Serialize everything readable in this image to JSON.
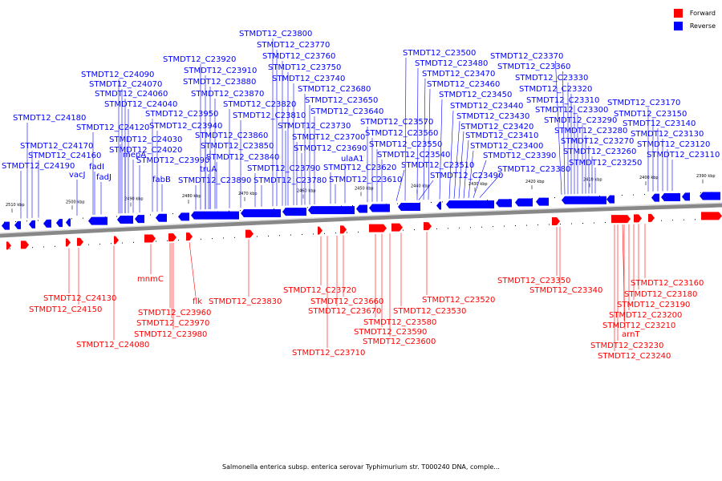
{
  "legend": {
    "forward_label": "Forward",
    "reverse_label": "Reverse",
    "forward_color": "#ff0000",
    "reverse_color": "#0000ff"
  },
  "caption": "Salmonella enterica subsp. enterica serovar Typhimurium str. T000240 DNA, comple...",
  "ticks": [
    "2510 kbp",
    "2500 kbp",
    "2490 kbp",
    "2480 kbp",
    "2470 kbp",
    "2460 kbp",
    "2450 kbp",
    "2440 kbp",
    "2430 kbp",
    "2420 kbp",
    "2410 kbp",
    "2400 kbp",
    "2390 kbp"
  ],
  "reverse_labels": [
    "STMDT12_C23800",
    "STMDT12_C23770",
    "STMDT12_C23760",
    "STMDT12_C23750",
    "STMDT12_C23740",
    "STMDT12_C23680",
    "STMDT12_C23650",
    "STMDT12_C23640",
    "STMDT12_C23500",
    "STMDT12_C23480",
    "STMDT12_C23470",
    "STMDT12_C23460",
    "STMDT12_C23450",
    "STMDT12_C23440",
    "STMDT12_C23430",
    "STMDT12_C23420",
    "STMDT12_C23410",
    "STMDT12_C23400",
    "STMDT12_C23390",
    "STMDT12_C23380",
    "STMDT12_C23370",
    "STMDT12_C23360",
    "STMDT12_C23330",
    "STMDT12_C23320",
    "STMDT12_C23310",
    "STMDT12_C23300",
    "STMDT12_C23290",
    "STMDT12_C23280",
    "STMDT12_C23270",
    "STMDT12_C23260",
    "STMDT12_C23250",
    "STMDT12_C23920",
    "STMDT12_C23910",
    "STMDT12_C23880",
    "STMDT12_C23870",
    "STMDT12_C23820",
    "STMDT12_C23810",
    "STMDT12_C23730",
    "STMDT12_C23700",
    "STMDT12_C23690",
    "STMDT12_C23620",
    "STMDT12_C23610",
    "ulaA1",
    "STMDT12_C23570",
    "STMDT12_C23560",
    "STMDT12_C23550",
    "STMDT12_C23540",
    "STMDT12_C23510",
    "STMDT12_C23490",
    "STMDT12_C24090",
    "STMDT12_C24070",
    "STMDT12_C24060",
    "STMDT12_C24040",
    "STMDT12_C23950",
    "STMDT12_C23940",
    "STMDT12_C23860",
    "STMDT12_C23850",
    "STMDT12_C23840",
    "STMDT12_C23790",
    "STMDT12_C23780",
    "STMDT12_C24180",
    "STMDT12_C24120",
    "STMDT12_C24030",
    "STMDT12_C24020",
    "STMDT12_C23990",
    "truA",
    "STMDT12_C23890",
    "fabB",
    "mepA",
    "STMDT12_C24170",
    "STMDT12_C24160",
    "STMDT12_C24190",
    "fadI",
    "fadJ",
    "vacJ",
    "STMDT12_C23170",
    "STMDT12_C23150",
    "STMDT12_C23140",
    "STMDT12_C23130",
    "STMDT12_C23120",
    "STMDT12_C23110"
  ],
  "forward_labels": [
    "STMDT12_C24130",
    "STMDT12_C24150",
    "STMDT12_C24080",
    "mnmC",
    "STMDT12_C23960",
    "STMDT12_C23970",
    "STMDT12_C23980",
    "flk",
    "STMDT12_C23830",
    "STMDT12_C23720",
    "STMDT12_C23660",
    "STMDT12_C23670",
    "STMDT12_C23710",
    "STMDT12_C23580",
    "STMDT12_C23590",
    "STMDT12_C23600",
    "STMDT12_C23530",
    "STMDT12_C23520",
    "STMDT12_C23350",
    "STMDT12_C23340",
    "STMDT12_C23160",
    "STMDT12_C23180",
    "STMDT12_C23190",
    "STMDT12_C23200",
    "STMDT12_C23210",
    "arnT",
    "STMDT12_C23230",
    "STMDT12_C23240"
  ]
}
